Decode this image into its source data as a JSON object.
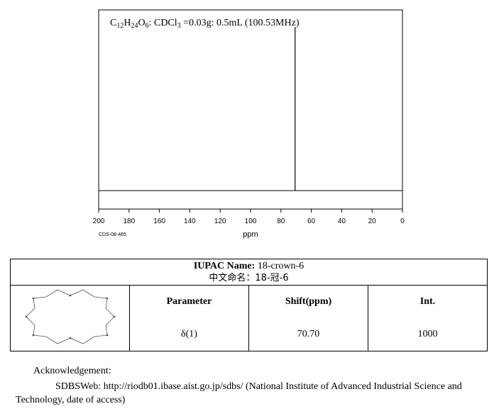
{
  "chart_data": {
    "type": "line",
    "title_parts": [
      {
        "text": "C",
        "sub": false
      },
      {
        "text": "12",
        "sub": true
      },
      {
        "text": "H",
        "sub": false
      },
      {
        "text": "24",
        "sub": true
      },
      {
        "text": "O",
        "sub": false
      },
      {
        "text": "6",
        "sub": true
      },
      {
        "text": ": CDCl",
        "sub": false
      },
      {
        "text": "3",
        "sub": true
      },
      {
        "text": " =0.03g: 0.5mL (100.53MHz)",
        "sub": false
      }
    ],
    "xlabel": "ppm",
    "xlim": [
      200,
      0
    ],
    "x_ticks": [
      200,
      180,
      160,
      140,
      120,
      100,
      80,
      60,
      40,
      20,
      0
    ],
    "code_label": "CDS-08-465",
    "peaks": [
      {
        "shift": 70.7,
        "intensity": 1000
      }
    ],
    "intensity_max": 1000
  },
  "table": {
    "iupac_label": "IUPAC Name:",
    "iupac_value": "18-crown-6",
    "zh_label": "中文命名：",
    "zh_value": "18-冠-6",
    "headers": {
      "parameter": "Parameter",
      "shift": "Shift(ppm)",
      "int": "Int."
    },
    "rows": [
      {
        "parameter": "δ(1)",
        "shift": "70.70",
        "int": "1000"
      }
    ]
  },
  "acknowledgement": {
    "title": "Acknowledgement:",
    "text": "SDBSWeb: http://riodb01.ibase.aist.go.jp/sdbs/ (National Institute of Advanced Industrial Science and Technology, date of access)"
  }
}
